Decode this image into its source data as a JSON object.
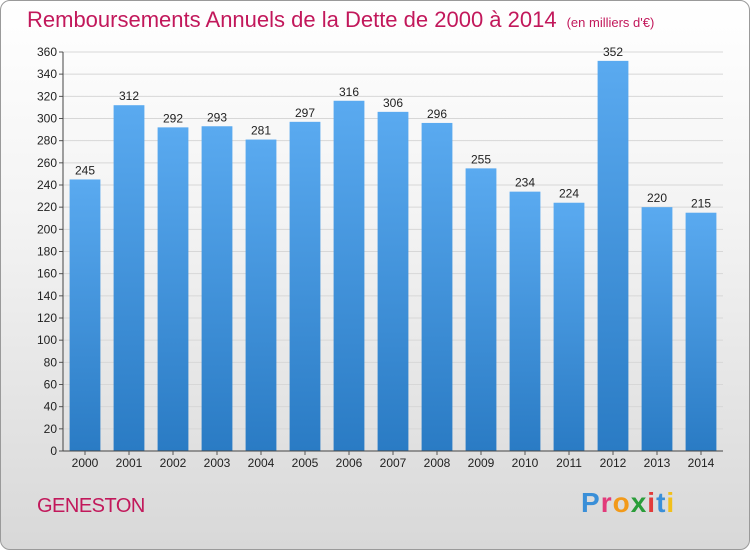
{
  "chart_data": {
    "type": "bar",
    "title": "Remboursements Annuels de la Dette de 2000 à 2014",
    "unit_label": "(en milliers d'€)",
    "categories": [
      "2000",
      "2001",
      "2002",
      "2003",
      "2004",
      "2005",
      "2006",
      "2007",
      "2008",
      "2009",
      "2010",
      "2011",
      "2012",
      "2013",
      "2014"
    ],
    "values": [
      245,
      312,
      292,
      293,
      281,
      297,
      316,
      306,
      296,
      255,
      234,
      224,
      352,
      220,
      215
    ],
    "ylim": [
      0,
      360
    ],
    "yticks": [
      0,
      20,
      40,
      60,
      80,
      100,
      120,
      140,
      160,
      180,
      200,
      220,
      240,
      260,
      280,
      300,
      320,
      340,
      360
    ],
    "grid": true,
    "bar_color_top": "#5aaaf0",
    "bar_color_bottom": "#2a7bc4",
    "title_color": "#c2185b"
  },
  "footer": {
    "city": "GENESTON",
    "brand_letters": [
      "P",
      "r",
      "o",
      "x",
      "i",
      "t",
      "i"
    ],
    "brand_colors": [
      "#3a8fd8",
      "#e23a7a",
      "#f29a1a",
      "#2a9d3a",
      "#e23a3a",
      "#3a8fd8",
      "#f2c01a"
    ]
  }
}
